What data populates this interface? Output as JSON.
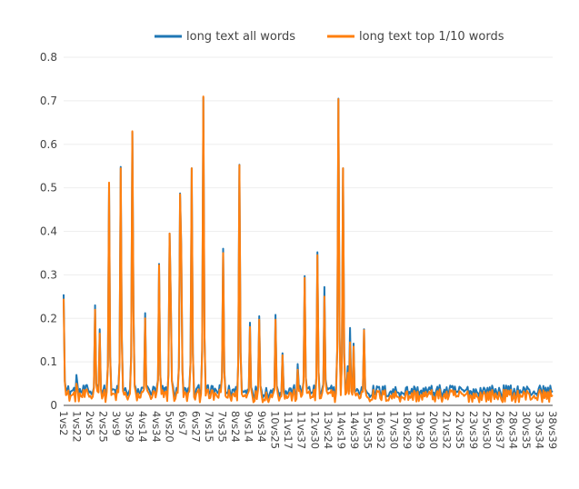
{
  "chart_data": {
    "type": "line",
    "title": "",
    "xlabel": "",
    "ylabel": "",
    "ylim": [
      0,
      0.8
    ],
    "yticks": [
      0,
      0.1,
      0.2,
      0.3,
      0.4,
      0.5,
      0.6,
      0.7,
      0.8
    ],
    "ytick_labels": [
      "0",
      "0.1",
      "0.2",
      "0.3",
      "0.4",
      "0.5",
      "0.6",
      "0.7",
      "0.8"
    ],
    "grid": true,
    "legend_position": "top-center",
    "x_tick_labels": [
      "1vs2",
      "1vs22",
      "2vs5",
      "2vs25",
      "3vs9",
      "3vs29",
      "4vs14",
      "4vs34",
      "5vs20",
      "6vs7",
      "6vs27",
      "7vs15",
      "7vs35",
      "8vs24",
      "9vs14",
      "9vs34",
      "10vs25",
      "11vs17",
      "11vs37",
      "12vs30",
      "13vs24",
      "14vs19",
      "14vs39",
      "15vs35",
      "16vs32",
      "17vs30",
      "18vs29",
      "19vs29",
      "20vs30",
      "21vs32",
      "22vs35",
      "23vs39",
      "25vs30",
      "26vs37",
      "28vs34",
      "30vs35",
      "33vs34",
      "38vs39"
    ],
    "series": [
      {
        "name": "long text all words",
        "color": "#1f77b4",
        "peaks": [
          {
            "x": 0.0,
            "y": 0.255
          },
          {
            "x": 1.0,
            "y": 0.07
          },
          {
            "x": 2.4,
            "y": 0.23
          },
          {
            "x": 2.7,
            "y": 0.175
          },
          {
            "x": 3.4,
            "y": 0.51
          },
          {
            "x": 4.3,
            "y": 0.548
          },
          {
            "x": 4.4,
            "y": 0.16
          },
          {
            "x": 5.2,
            "y": 0.628
          },
          {
            "x": 5.3,
            "y": 0.218
          },
          {
            "x": 6.2,
            "y": 0.212
          },
          {
            "x": 7.2,
            "y": 0.325
          },
          {
            "x": 8.0,
            "y": 0.395
          },
          {
            "x": 8.1,
            "y": 0.258
          },
          {
            "x": 8.8,
            "y": 0.487
          },
          {
            "x": 8.9,
            "y": 0.365
          },
          {
            "x": 9.7,
            "y": 0.545
          },
          {
            "x": 10.6,
            "y": 0.708
          },
          {
            "x": 12.1,
            "y": 0.36
          },
          {
            "x": 13.3,
            "y": 0.553
          },
          {
            "x": 14.1,
            "y": 0.19
          },
          {
            "x": 14.8,
            "y": 0.205
          },
          {
            "x": 16.0,
            "y": 0.208
          },
          {
            "x": 16.6,
            "y": 0.12
          },
          {
            "x": 17.7,
            "y": 0.095
          },
          {
            "x": 18.2,
            "y": 0.297
          },
          {
            "x": 19.2,
            "y": 0.352
          },
          {
            "x": 19.7,
            "y": 0.272
          },
          {
            "x": 20.8,
            "y": 0.705
          },
          {
            "x": 21.1,
            "y": 0.545
          },
          {
            "x": 21.5,
            "y": 0.09
          },
          {
            "x": 21.7,
            "y": 0.178
          },
          {
            "x": 21.9,
            "y": 0.142
          },
          {
            "x": 22.7,
            "y": 0.175
          }
        ],
        "baseline": 0.025
      },
      {
        "name": "long text top 1/10 words",
        "color": "#ff7f0e",
        "peaks": [
          {
            "x": 0.0,
            "y": 0.245
          },
          {
            "x": 1.0,
            "y": 0.05
          },
          {
            "x": 2.4,
            "y": 0.22
          },
          {
            "x": 2.7,
            "y": 0.165
          },
          {
            "x": 3.4,
            "y": 0.512
          },
          {
            "x": 4.3,
            "y": 0.545
          },
          {
            "x": 4.4,
            "y": 0.15
          },
          {
            "x": 5.2,
            "y": 0.63
          },
          {
            "x": 5.3,
            "y": 0.2
          },
          {
            "x": 6.2,
            "y": 0.2
          },
          {
            "x": 7.2,
            "y": 0.322
          },
          {
            "x": 8.0,
            "y": 0.395
          },
          {
            "x": 8.1,
            "y": 0.255
          },
          {
            "x": 8.8,
            "y": 0.485
          },
          {
            "x": 8.9,
            "y": 0.36
          },
          {
            "x": 9.7,
            "y": 0.545
          },
          {
            "x": 10.6,
            "y": 0.71
          },
          {
            "x": 12.1,
            "y": 0.35
          },
          {
            "x": 13.3,
            "y": 0.552
          },
          {
            "x": 14.1,
            "y": 0.18
          },
          {
            "x": 14.8,
            "y": 0.197
          },
          {
            "x": 16.0,
            "y": 0.197
          },
          {
            "x": 16.6,
            "y": 0.115
          },
          {
            "x": 17.7,
            "y": 0.082
          },
          {
            "x": 18.2,
            "y": 0.293
          },
          {
            "x": 19.2,
            "y": 0.345
          },
          {
            "x": 19.7,
            "y": 0.25
          },
          {
            "x": 20.8,
            "y": 0.704
          },
          {
            "x": 21.1,
            "y": 0.545
          },
          {
            "x": 21.5,
            "y": 0.075
          },
          {
            "x": 21.7,
            "y": 0.145
          },
          {
            "x": 21.9,
            "y": 0.135
          },
          {
            "x": 22.7,
            "y": 0.173
          }
        ],
        "baseline": 0.015
      }
    ]
  }
}
